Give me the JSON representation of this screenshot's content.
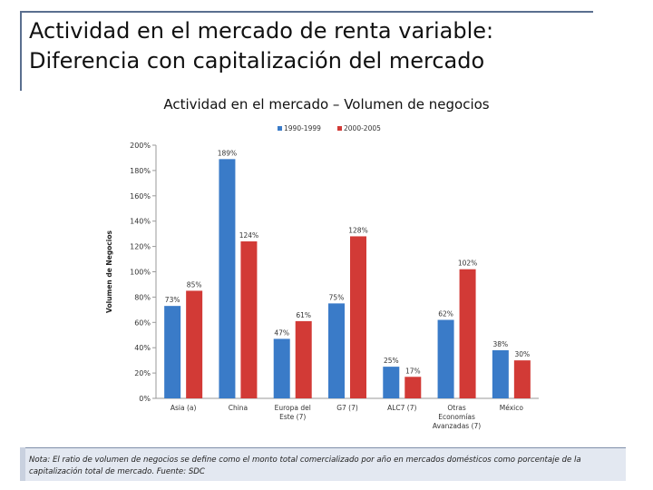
{
  "slide": {
    "title_line1": "Actividad en el mercado de renta variable:",
    "title_line2": "Diferencia con capitalización del mercado"
  },
  "chart_data": {
    "type": "bar",
    "title": "Actividad en el mercado – Volumen de negocios",
    "ylabel": "Volumen de Negocios",
    "xlabel": "",
    "ylim": [
      0,
      200
    ],
    "yticks": [
      0,
      20,
      40,
      60,
      80,
      100,
      120,
      140,
      160,
      180,
      200
    ],
    "ytick_labels": [
      "0%",
      "20%",
      "40%",
      "60%",
      "80%",
      "100%",
      "120%",
      "140%",
      "160%",
      "180%",
      "200%"
    ],
    "categories": [
      [
        "Asia (a)"
      ],
      [
        "China"
      ],
      [
        "Europa del",
        "Este (7)"
      ],
      [
        "G7 (7)"
      ],
      [
        "ALC7 (7)"
      ],
      [
        "Otras",
        "Economías",
        "Avanzadas (7)"
      ],
      [
        "México"
      ]
    ],
    "series": [
      {
        "name": "1990-1999",
        "color": "#3a7bc8",
        "values": [
          73,
          189,
          47,
          75,
          25,
          62,
          38
        ],
        "labels": [
          "73%",
          "189%",
          "47%",
          "75%",
          "25%",
          "62%",
          "38%"
        ]
      },
      {
        "name": "2000-2005",
        "color": "#d23a36",
        "values": [
          85,
          124,
          61,
          128,
          17,
          102,
          30
        ],
        "labels": [
          "85%",
          "124%",
          "61%",
          "128%",
          "17%",
          "102%",
          "30%"
        ]
      }
    ],
    "legend_position": "top",
    "grid": false
  },
  "footnote": {
    "text": "Nota: El ratio de volumen de negocios se define como el monto total comercializado por año en mercados domésticos como porcentaje de la capitalización total de mercado. Fuente: SDC"
  }
}
